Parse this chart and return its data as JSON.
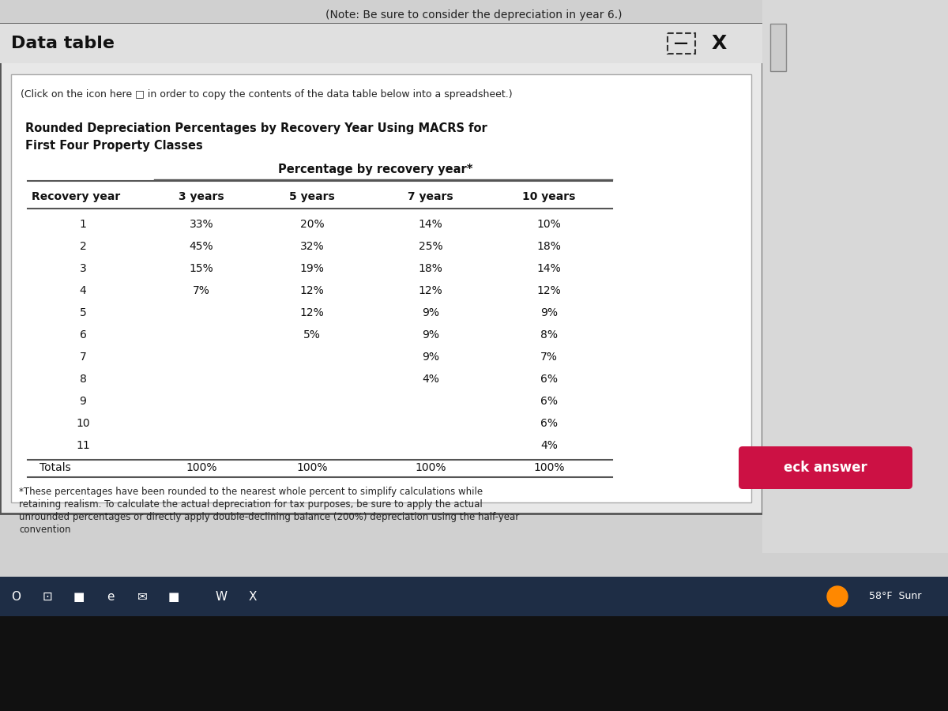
{
  "top_text": "(Note: Be sure to consider the depreciation in year 6.)",
  "dialog_title": "Data table",
  "click_text": "(Click on the icon here □ in order to copy the contents of the data table below into a spreadsheet.)",
  "table_title_line1": "Rounded Depreciation Percentages by Recovery Year Using MACRS for",
  "table_title_line2": "First Four Property Classes",
  "col_header_top": "Percentage by recovery year*",
  "col_headers": [
    "Recovery year",
    "3 years",
    "5 years",
    "7 years",
    "10 years"
  ],
  "rows": [
    [
      "1",
      "33%",
      "20%",
      "14%",
      "10%"
    ],
    [
      "2",
      "45%",
      "32%",
      "25%",
      "18%"
    ],
    [
      "3",
      "15%",
      "19%",
      "18%",
      "14%"
    ],
    [
      "4",
      "7%",
      "12%",
      "12%",
      "12%"
    ],
    [
      "5",
      "",
      "12%",
      "9%",
      "9%"
    ],
    [
      "6",
      "",
      "5%",
      "9%",
      "8%"
    ],
    [
      "7",
      "",
      "",
      "9%",
      "7%"
    ],
    [
      "8",
      "",
      "",
      "4%",
      "6%"
    ],
    [
      "9",
      "",
      "",
      "",
      "6%"
    ],
    [
      "10",
      "",
      "",
      "",
      "6%"
    ],
    [
      "11",
      "",
      "",
      "",
      "4%"
    ]
  ],
  "totals_row": [
    "Totals",
    "100%",
    "100%",
    "100%",
    "100%"
  ],
  "footnote": "*These percentages have been rounded to the nearest whole percent to simplify calculations while\nretaining realism. To calculate the actual depreciation for tax purposes, be sure to apply the actual\nunrounded percentages or directly apply double-declining balance (200%) depreciation using the half-year\nconvention",
  "bg_color": "#d0d0d0",
  "dialog_bg": "#e8e8e8",
  "inner_bg": "#ffffff",
  "eck_answer_color": "#cc1144",
  "eck_answer_text": "eck answer",
  "taskbar_color": "#1e2d45"
}
